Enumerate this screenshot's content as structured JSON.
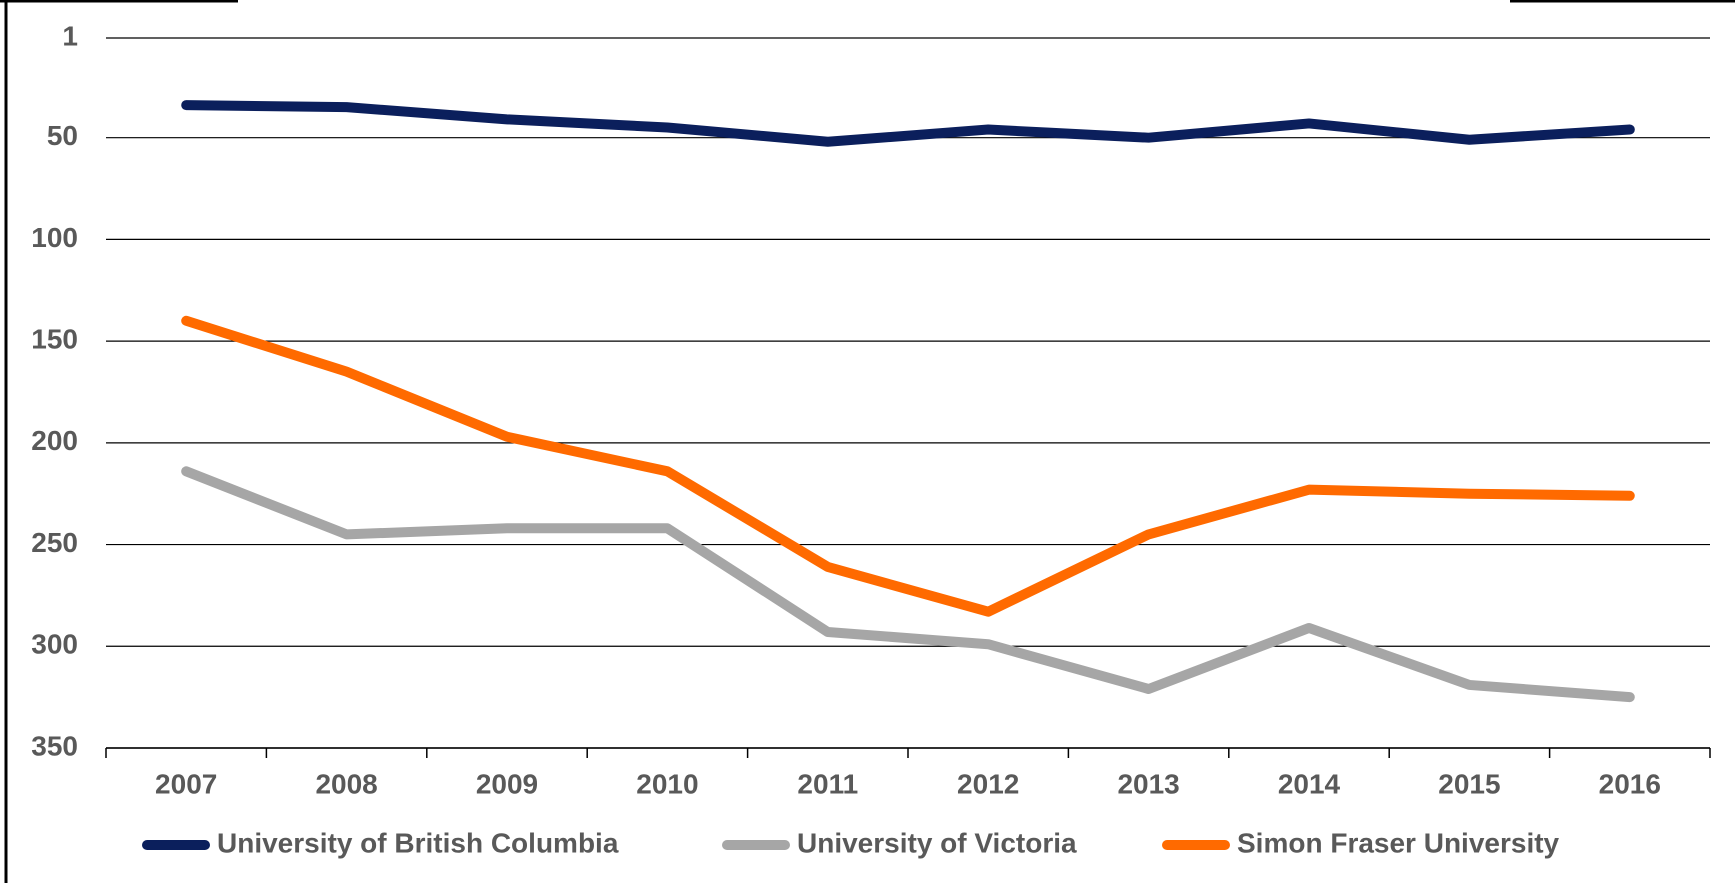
{
  "chart_data": {
    "type": "line",
    "categories": [
      "2007",
      "2008",
      "2009",
      "2010",
      "2011",
      "2012",
      "2013",
      "2014",
      "2015",
      "2016"
    ],
    "series": [
      {
        "name": "University of British Columbia",
        "color": "#0b1f5c",
        "values": [
          34,
          35,
          41,
          45,
          52,
          46,
          50,
          43,
          51,
          46
        ]
      },
      {
        "name": "University of Victoria",
        "color": "#a6a6a6",
        "values": [
          214,
          245,
          242,
          242,
          293,
          299,
          321,
          291,
          319,
          325
        ]
      },
      {
        "name": "Simon Fraser University",
        "color": "#ff6a00",
        "values": [
          140,
          165,
          197,
          214,
          261,
          283,
          245,
          223,
          225,
          226
        ]
      }
    ],
    "ylim": [
      1,
      350
    ],
    "y_inverted": true,
    "yticks": [
      1,
      50,
      100,
      150,
      200,
      250,
      300,
      350
    ],
    "grid": true,
    "legend": "bottom"
  }
}
